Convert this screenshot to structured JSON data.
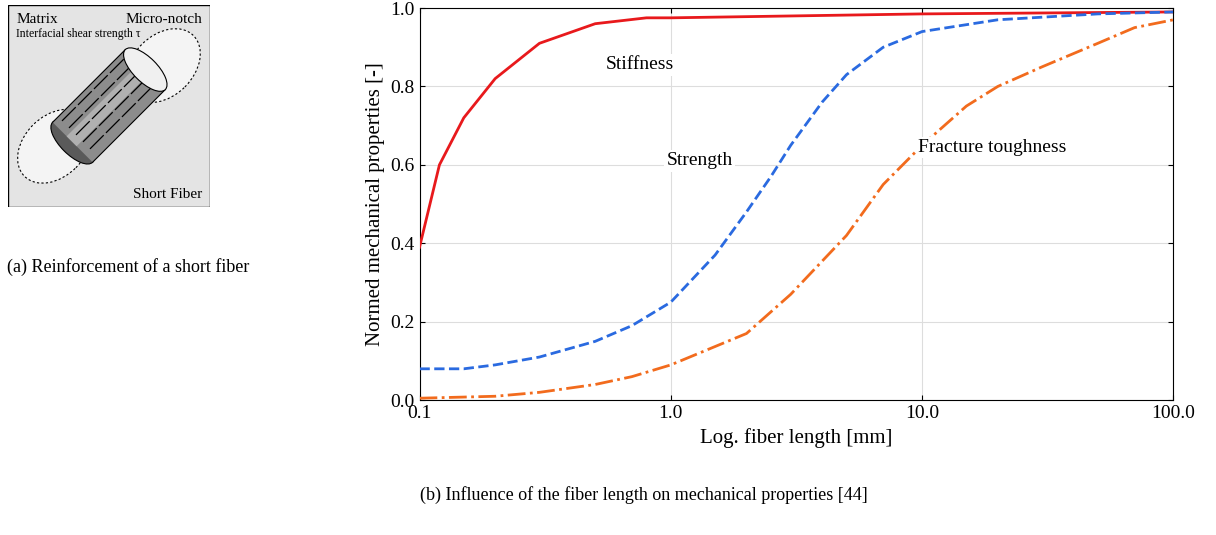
{
  "diagram": {
    "labels": {
      "matrix": "Matrix",
      "notch": "Micro-notch",
      "interface": "Interfacial shear strength τ",
      "fiber": "Short Fiber"
    }
  },
  "captions": {
    "a": "(a) Reinforcement of a short fiber",
    "b": "(b) Influence of the fiber length on mechanical properties [44]"
  },
  "chart_data": {
    "type": "line",
    "x_label": "Log. fiber length [mm]",
    "y_label": "Normed mechanical properties [-]",
    "log": "x",
    "grid": true,
    "xlim": [
      0.1,
      100
    ],
    "ylim": [
      0,
      1
    ],
    "xticks": [
      0.1,
      {
        "value": 1,
        "label": "1.0"
      },
      {
        "value": 10,
        "label": "10.0"
      },
      {
        "value": 100,
        "label": "100.0"
      }
    ],
    "yticks": [
      {
        "value": 0,
        "label": "0.0"
      },
      0.2,
      0.4,
      0.6,
      0.8,
      {
        "value": 1,
        "label": "1.0"
      }
    ],
    "series": [
      {
        "name": "Stiffness",
        "color": "#e8191c",
        "line_style": "solid",
        "x": [
          0.1,
          0.12,
          0.15,
          0.2,
          0.3,
          0.5,
          0.8,
          1,
          10,
          100
        ],
        "values": [
          0.39,
          0.6,
          0.72,
          0.82,
          0.91,
          0.96,
          0.975,
          0.975,
          0.985,
          0.99
        ]
      },
      {
        "name": "Strength",
        "color": "#2a6ae0",
        "line_style": "dashed",
        "x": [
          0.1,
          0.15,
          0.2,
          0.3,
          0.5,
          0.7,
          1,
          1.5,
          2,
          2.5,
          3,
          4,
          5,
          7,
          10,
          20,
          50,
          100
        ],
        "values": [
          0.08,
          0.08,
          0.09,
          0.11,
          0.15,
          0.19,
          0.25,
          0.37,
          0.48,
          0.57,
          0.65,
          0.76,
          0.83,
          0.9,
          0.94,
          0.97,
          0.985,
          0.99
        ]
      },
      {
        "name": "Fracture toughness",
        "color": "#f26b1d",
        "line_style": "dashdot",
        "x": [
          0.1,
          0.2,
          0.3,
          0.5,
          0.7,
          1,
          2,
          3,
          5,
          7,
          10,
          15,
          20,
          30,
          50,
          70,
          100
        ],
        "values": [
          0.005,
          0.01,
          0.02,
          0.04,
          0.06,
          0.09,
          0.17,
          0.27,
          0.42,
          0.55,
          0.65,
          0.75,
          0.8,
          0.85,
          0.91,
          0.95,
          0.97
        ]
      }
    ]
  }
}
